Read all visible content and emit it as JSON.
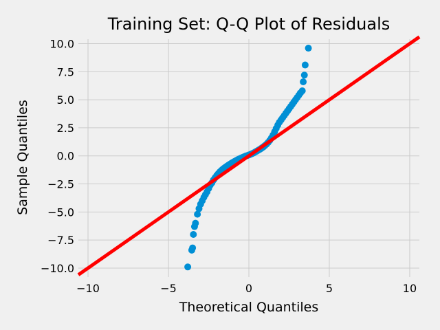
{
  "chart_data": {
    "type": "scatter",
    "title": "Training Set: Q-Q Plot of Residuals",
    "xlabel": "Theoretical Quantiles",
    "ylabel": "Sample Quantiles",
    "xlim": [
      -10.6,
      10.6
    ],
    "ylim": [
      -10.8,
      10.4
    ],
    "x_ticks": [
      -10,
      -5,
      0,
      5,
      10
    ],
    "x_tick_labels": [
      "−10",
      "−5",
      "0",
      "5",
      "10"
    ],
    "y_ticks": [
      -10.0,
      -7.5,
      -5.0,
      -2.5,
      0.0,
      2.5,
      5.0,
      7.5,
      10.0
    ],
    "y_tick_labels": [
      "−10.0",
      "−7.5",
      "−5.0",
      "−2.5",
      "0.0",
      "2.5",
      "5.0",
      "7.5",
      "10.0"
    ],
    "grid": true,
    "colors": {
      "points": "#008fd5",
      "reference_line": "#ff0000",
      "background": "#f0f0f0",
      "grid": "#cbcbcb"
    },
    "series": [
      {
        "kind": "points",
        "x": [
          -3.8,
          -3.55,
          -3.5,
          -3.45,
          -3.38,
          -3.32,
          -3.2,
          -3.1,
          -3.0,
          -2.9,
          -2.8,
          -2.7,
          -2.6,
          -2.5,
          -2.4,
          -2.3,
          -2.2,
          -2.1,
          -2.0,
          -1.9,
          -1.8,
          -1.7,
          -1.6,
          -1.5,
          -1.4,
          -1.3,
          -1.2,
          -1.1,
          -1.0,
          -0.9,
          -0.8,
          -0.7,
          -0.6,
          -0.5,
          -0.4,
          -0.3,
          -0.2,
          -0.1,
          0.0,
          0.1,
          0.2,
          0.3,
          0.4,
          0.5,
          0.6,
          0.7,
          0.8,
          0.9,
          1.0,
          1.1,
          1.2,
          1.3,
          1.4,
          1.5,
          1.6,
          1.7,
          1.8,
          1.9,
          2.0,
          2.1,
          2.2,
          2.3,
          2.4,
          2.5,
          2.6,
          2.7,
          2.8,
          2.9,
          3.0,
          3.1,
          3.2,
          3.32,
          3.38,
          3.45,
          3.5,
          3.7
        ],
        "y": [
          -9.9,
          -8.4,
          -8.2,
          -7.0,
          -6.3,
          -6.0,
          -5.2,
          -4.7,
          -4.3,
          -4.0,
          -3.7,
          -3.45,
          -3.2,
          -2.9,
          -2.6,
          -2.4,
          -2.15,
          -1.95,
          -1.75,
          -1.58,
          -1.42,
          -1.28,
          -1.16,
          -1.05,
          -0.95,
          -0.85,
          -0.76,
          -0.67,
          -0.58,
          -0.5,
          -0.42,
          -0.34,
          -0.27,
          -0.2,
          -0.14,
          -0.08,
          -0.02,
          0.03,
          0.08,
          0.14,
          0.2,
          0.27,
          0.35,
          0.43,
          0.52,
          0.6,
          0.7,
          0.8,
          0.92,
          1.05,
          1.2,
          1.38,
          1.6,
          1.85,
          2.15,
          2.45,
          2.75,
          3.0,
          3.2,
          3.4,
          3.6,
          3.8,
          4.0,
          4.2,
          4.4,
          4.6,
          4.8,
          5.0,
          5.2,
          5.4,
          5.6,
          5.8,
          6.6,
          7.2,
          8.1,
          9.6
        ]
      },
      {
        "kind": "reference-line",
        "x": [
          -10.6,
          10.6
        ],
        "y": [
          -10.6,
          10.6
        ]
      }
    ]
  }
}
